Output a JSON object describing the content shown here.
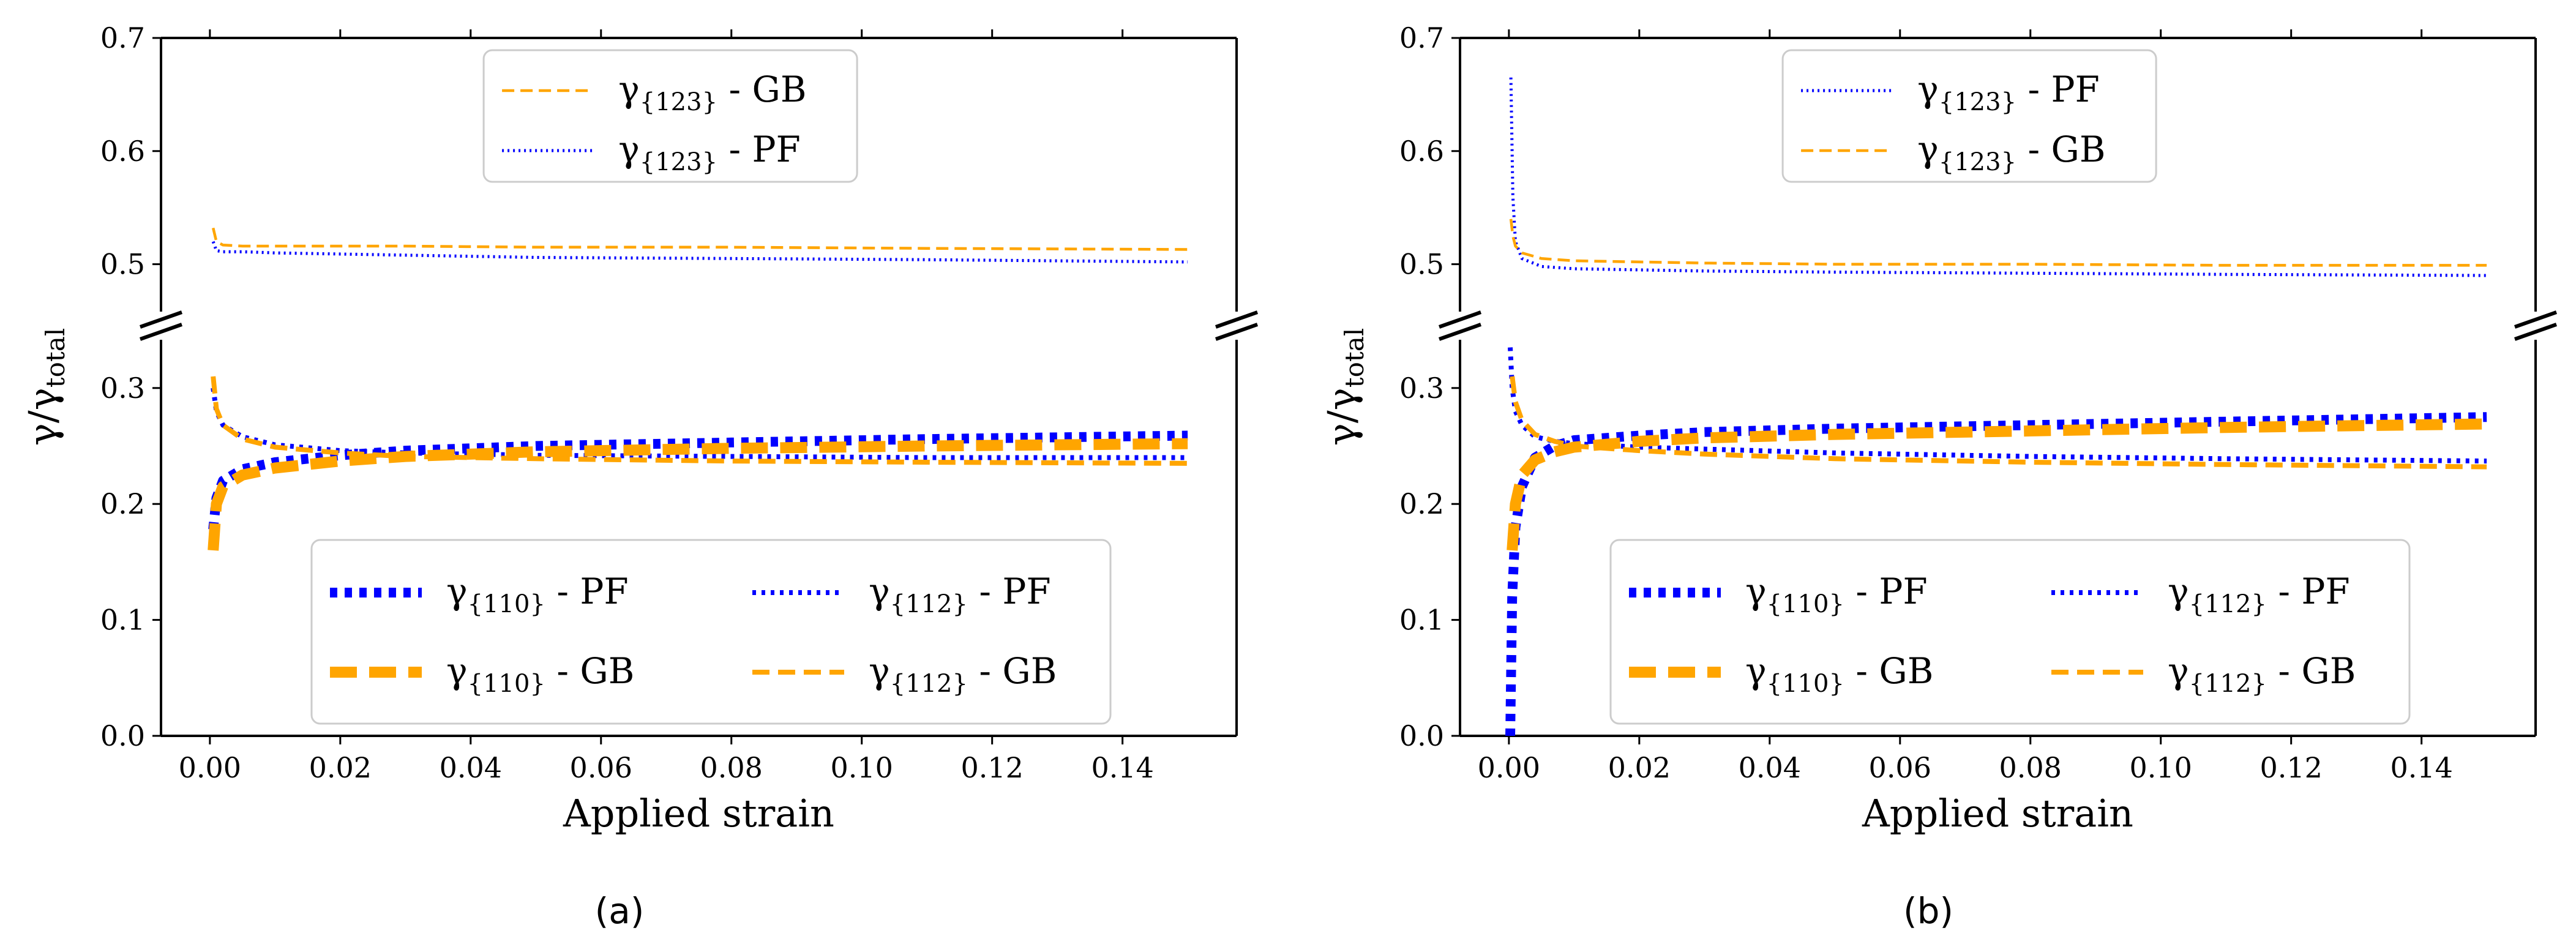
{
  "figure": {
    "caption_a": "(a)",
    "caption_b": "(b)"
  },
  "chart_data": [
    {
      "id": "a",
      "type": "line",
      "title": "",
      "xlabel": "Applied strain",
      "ylabel": "γ/γtotal",
      "ylabel_main": "γ/γ",
      "ylabel_sub": "total",
      "xlim": [
        -0.0075,
        0.1575
      ],
      "ylim": [
        0,
        0.7
      ],
      "y_axis_break": [
        0.33,
        0.47
      ],
      "grid": false,
      "xticks": [
        0.0,
        0.02,
        0.04,
        0.06,
        0.08,
        0.1,
        0.12,
        0.14
      ],
      "xtick_labels": [
        "0.00",
        "0.02",
        "0.04",
        "0.06",
        "0.08",
        "0.10",
        "0.12",
        "0.14"
      ],
      "yticks": [
        0.0,
        0.1,
        0.2,
        0.3,
        0.5,
        0.6,
        0.7
      ],
      "ytick_labels": [
        "0.0",
        "0.1",
        "0.2",
        "0.3",
        "0.5",
        "0.6",
        "0.7"
      ],
      "legend_upper": {
        "placement": "top-center",
        "entries": [
          {
            "series": "123GB",
            "main": "γ",
            "sub": "{123}",
            "tail": " - GB"
          },
          {
            "series": "123PF",
            "main": "γ",
            "sub": "{123}",
            "tail": " - PF"
          }
        ]
      },
      "legend_lower": {
        "placement": "bottom-center",
        "entries": [
          {
            "series": "110PF",
            "main": "γ",
            "sub": "{110}",
            "tail": " - PF"
          },
          {
            "series": "112PF",
            "main": "γ",
            "sub": "{112}",
            "tail": " - PF"
          },
          {
            "series": "110GB",
            "main": "γ",
            "sub": "{110}",
            "tail": " - GB"
          },
          {
            "series": "112GB",
            "main": "γ",
            "sub": "{112}",
            "tail": " - GB"
          }
        ]
      },
      "series": [
        {
          "key": "123GB",
          "name": "γ{123} - GB",
          "color": "#FFA500",
          "style": "dashed-thin",
          "x": [
            0.0005,
            0.001,
            0.002,
            0.005,
            0.01,
            0.03,
            0.05,
            0.08,
            0.11,
            0.15
          ],
          "y": [
            0.532,
            0.52,
            0.517,
            0.516,
            0.516,
            0.516,
            0.515,
            0.515,
            0.514,
            0.513
          ]
        },
        {
          "key": "123PF",
          "name": "γ{123} - PF",
          "color": "#0000FF",
          "style": "dotted-thin",
          "x": [
            0.0005,
            0.001,
            0.002,
            0.005,
            0.01,
            0.03,
            0.05,
            0.08,
            0.11,
            0.15
          ],
          "y": [
            0.52,
            0.512,
            0.511,
            0.511,
            0.51,
            0.508,
            0.506,
            0.505,
            0.504,
            0.502
          ]
        },
        {
          "key": "110PF",
          "name": "γ{110} - PF",
          "color": "#0000FF",
          "style": "dotted-thick",
          "x": [
            0.0005,
            0.001,
            0.002,
            0.005,
            0.01,
            0.02,
            0.03,
            0.05,
            0.08,
            0.11,
            0.15
          ],
          "y": [
            0.178,
            0.205,
            0.22,
            0.23,
            0.236,
            0.242,
            0.246,
            0.25,
            0.253,
            0.256,
            0.259
          ]
        },
        {
          "key": "112PF",
          "name": "γ{112} - PF",
          "color": "#0000FF",
          "style": "dotted-medium",
          "x": [
            0.0005,
            0.001,
            0.002,
            0.005,
            0.01,
            0.02,
            0.03,
            0.05,
            0.08,
            0.11,
            0.15
          ],
          "y": [
            0.3,
            0.28,
            0.268,
            0.258,
            0.251,
            0.246,
            0.244,
            0.242,
            0.241,
            0.24,
            0.24
          ]
        },
        {
          "key": "110GB",
          "name": "γ{110} - GB",
          "color": "#FFA500",
          "style": "dashed-thick",
          "x": [
            0.0005,
            0.001,
            0.002,
            0.005,
            0.01,
            0.02,
            0.03,
            0.05,
            0.08,
            0.11,
            0.15
          ],
          "y": [
            0.16,
            0.2,
            0.215,
            0.225,
            0.231,
            0.237,
            0.241,
            0.245,
            0.248,
            0.25,
            0.252
          ]
        },
        {
          "key": "112GB",
          "name": "γ{112} - GB",
          "color": "#FFA500",
          "style": "dashed-medium",
          "x": [
            0.0005,
            0.001,
            0.002,
            0.005,
            0.01,
            0.02,
            0.03,
            0.05,
            0.08,
            0.11,
            0.15
          ],
          "y": [
            0.31,
            0.282,
            0.268,
            0.256,
            0.249,
            0.244,
            0.241,
            0.239,
            0.237,
            0.236,
            0.235
          ]
        }
      ]
    },
    {
      "id": "b",
      "type": "line",
      "title": "",
      "xlabel": "Applied strain",
      "ylabel": "γ/γtotal",
      "ylabel_main": "γ/γ",
      "ylabel_sub": "total",
      "xlim": [
        -0.0075,
        0.1575
      ],
      "ylim": [
        0,
        0.7
      ],
      "y_axis_break": [
        0.33,
        0.47
      ],
      "grid": false,
      "xticks": [
        0.0,
        0.02,
        0.04,
        0.06,
        0.08,
        0.1,
        0.12,
        0.14
      ],
      "xtick_labels": [
        "0.00",
        "0.02",
        "0.04",
        "0.06",
        "0.08",
        "0.10",
        "0.12",
        "0.14"
      ],
      "yticks": [
        0.0,
        0.1,
        0.2,
        0.3,
        0.5,
        0.6,
        0.7
      ],
      "ytick_labels": [
        "0.0",
        "0.1",
        "0.2",
        "0.3",
        "0.5",
        "0.6",
        "0.7"
      ],
      "legend_upper": {
        "placement": "top-center",
        "entries": [
          {
            "series": "123PF",
            "main": "γ",
            "sub": "{123}",
            "tail": " - PF"
          },
          {
            "series": "123GB",
            "main": "γ",
            "sub": "{123}",
            "tail": " - GB"
          }
        ]
      },
      "legend_lower": {
        "placement": "bottom-center",
        "entries": [
          {
            "series": "110PF",
            "main": "γ",
            "sub": "{110}",
            "tail": " - PF"
          },
          {
            "series": "112PF",
            "main": "γ",
            "sub": "{112}",
            "tail": " - PF"
          },
          {
            "series": "110GB",
            "main": "γ",
            "sub": "{110}",
            "tail": " - GB"
          },
          {
            "series": "112GB",
            "main": "γ",
            "sub": "{112}",
            "tail": " - GB"
          }
        ]
      },
      "series": [
        {
          "key": "123PF",
          "name": "γ{123} - PF",
          "color": "#0000FF",
          "style": "dotted-thin",
          "x": [
            0.0003,
            0.0006,
            0.001,
            0.002,
            0.005,
            0.01,
            0.03,
            0.05,
            0.08,
            0.11,
            0.15
          ],
          "y": [
            0.665,
            0.56,
            0.52,
            0.505,
            0.498,
            0.496,
            0.494,
            0.493,
            0.492,
            0.491,
            0.49
          ]
        },
        {
          "key": "123GB",
          "name": "γ{123} - GB",
          "color": "#FFA500",
          "style": "dashed-thin",
          "x": [
            0.0003,
            0.0006,
            0.001,
            0.002,
            0.005,
            0.01,
            0.03,
            0.05,
            0.08,
            0.11,
            0.15
          ],
          "y": [
            0.54,
            0.525,
            0.516,
            0.51,
            0.505,
            0.503,
            0.501,
            0.5,
            0.5,
            0.499,
            0.499
          ]
        },
        {
          "key": "110PF",
          "name": "γ{110} - PF",
          "color": "#0000FF",
          "style": "dotted-thick",
          "x": [
            0.0002,
            0.0005,
            0.001,
            0.002,
            0.004,
            0.007,
            0.01,
            0.02,
            0.03,
            0.05,
            0.08,
            0.11,
            0.15
          ],
          "y": [
            0.0,
            0.12,
            0.18,
            0.215,
            0.24,
            0.25,
            0.255,
            0.259,
            0.262,
            0.265,
            0.268,
            0.271,
            0.275
          ]
        },
        {
          "key": "112PF",
          "name": "γ{112} - PF",
          "color": "#0000FF",
          "style": "dotted-medium",
          "x": [
            0.0002,
            0.0005,
            0.001,
            0.002,
            0.004,
            0.007,
            0.01,
            0.02,
            0.05,
            0.08,
            0.11,
            0.15
          ],
          "y": [
            0.335,
            0.3,
            0.28,
            0.268,
            0.258,
            0.254,
            0.252,
            0.249,
            0.244,
            0.241,
            0.239,
            0.237
          ]
        },
        {
          "key": "110GB",
          "name": "γ{110} - GB",
          "color": "#FFA500",
          "style": "dashed-thick",
          "x": [
            0.0005,
            0.001,
            0.002,
            0.004,
            0.007,
            0.01,
            0.02,
            0.03,
            0.05,
            0.08,
            0.11,
            0.15
          ],
          "y": [
            0.16,
            0.2,
            0.225,
            0.238,
            0.245,
            0.249,
            0.254,
            0.257,
            0.26,
            0.263,
            0.266,
            0.269
          ]
        },
        {
          "key": "112GB",
          "name": "γ{112} - GB",
          "color": "#FFA500",
          "style": "dashed-medium",
          "x": [
            0.0005,
            0.001,
            0.002,
            0.004,
            0.007,
            0.01,
            0.02,
            0.03,
            0.05,
            0.08,
            0.11,
            0.15
          ],
          "y": [
            0.31,
            0.288,
            0.272,
            0.26,
            0.254,
            0.25,
            0.246,
            0.243,
            0.239,
            0.236,
            0.234,
            0.232
          ]
        }
      ]
    }
  ]
}
